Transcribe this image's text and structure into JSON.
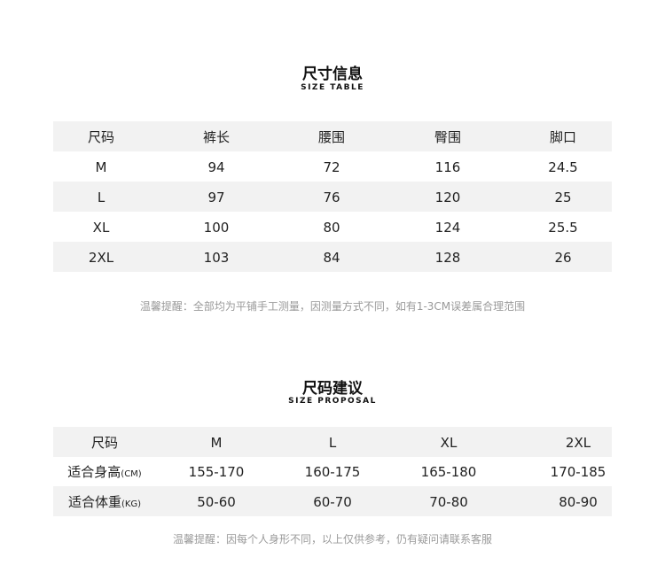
{
  "size_table": {
    "title": "尺寸信息",
    "subtitle": "SIZE TABLE",
    "headers": [
      "尺码",
      "裤长",
      "腰围",
      "臀围",
      "脚口"
    ],
    "rows": [
      [
        "M",
        "94",
        "72",
        "116",
        "24.5"
      ],
      [
        "L",
        "97",
        "76",
        "120",
        "25"
      ],
      [
        "XL",
        "100",
        "80",
        "124",
        "25.5"
      ],
      [
        "2XL",
        "103",
        "84",
        "128",
        "26"
      ]
    ],
    "note": "温馨提醒：全部均为平铺手工测量，因测量方式不同，如有1-3CM误差属合理范围"
  },
  "size_proposal": {
    "title": "尺码建议",
    "subtitle": "SIZE PROPOSAL",
    "headers": [
      "尺码",
      "M",
      "L",
      "XL",
      "2XL"
    ],
    "rows": [
      {
        "label": "适合身高",
        "unit": "(CM)",
        "values": [
          "155-170",
          "160-175",
          "165-180",
          "170-185"
        ]
      },
      {
        "label": "适合体重",
        "unit": "(KG)",
        "values": [
          "50-60",
          "60-70",
          "70-80",
          "80-90"
        ]
      }
    ],
    "note": "温馨提醒：因每个人身形不同，以上仅供参考，仍有疑问请联系客服"
  },
  "colors": {
    "row_stripe": "#f2f2f2",
    "note_text": "#9a9a9a"
  }
}
